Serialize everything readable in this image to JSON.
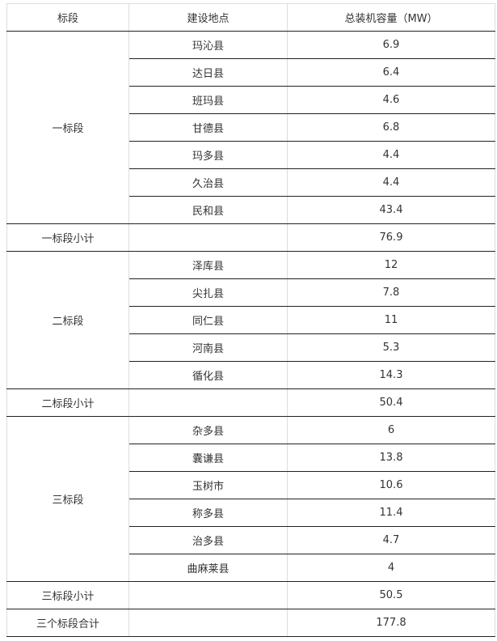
{
  "headers": [
    "标段",
    "建设地点",
    "总装机容量（MW）"
  ],
  "sections": [
    {
      "name": "一标段",
      "rows": [
        [
          "玛沁县",
          "6.9"
        ],
        [
          "达日县",
          "6.4"
        ],
        [
          "班玛县",
          "4.6"
        ],
        [
          "甘德县",
          "6.8"
        ],
        [
          "玛多县",
          "4.4"
        ],
        [
          "久治县",
          "4.4"
        ],
        [
          "民和县",
          "43.4"
        ]
      ],
      "subtotal_label": "一标段小计",
      "subtotal": "76.9"
    },
    {
      "name": "二标段",
      "rows": [
        [
          "泽库县",
          "12"
        ],
        [
          "尖扎县",
          "7.8"
        ],
        [
          "同仁县",
          "11"
        ],
        [
          "河南县",
          "5.3"
        ],
        [
          "循化县",
          "14.3"
        ]
      ],
      "subtotal_label": "二标段小计",
      "subtotal": "50.4"
    },
    {
      "name": "三标段",
      "rows": [
        [
          "杂多县",
          "6"
        ],
        [
          "囊谦县",
          "13.8"
        ],
        [
          "玉树市",
          "10.6"
        ],
        [
          "称多县",
          "11.4"
        ],
        [
          "治多县",
          "4.7"
        ],
        [
          "曲麻莱县",
          "4"
        ]
      ],
      "subtotal_label": "三标段小计",
      "subtotal": "50.5"
    }
  ],
  "total_label": "三个标段合计",
  "total": "177.8"
}
